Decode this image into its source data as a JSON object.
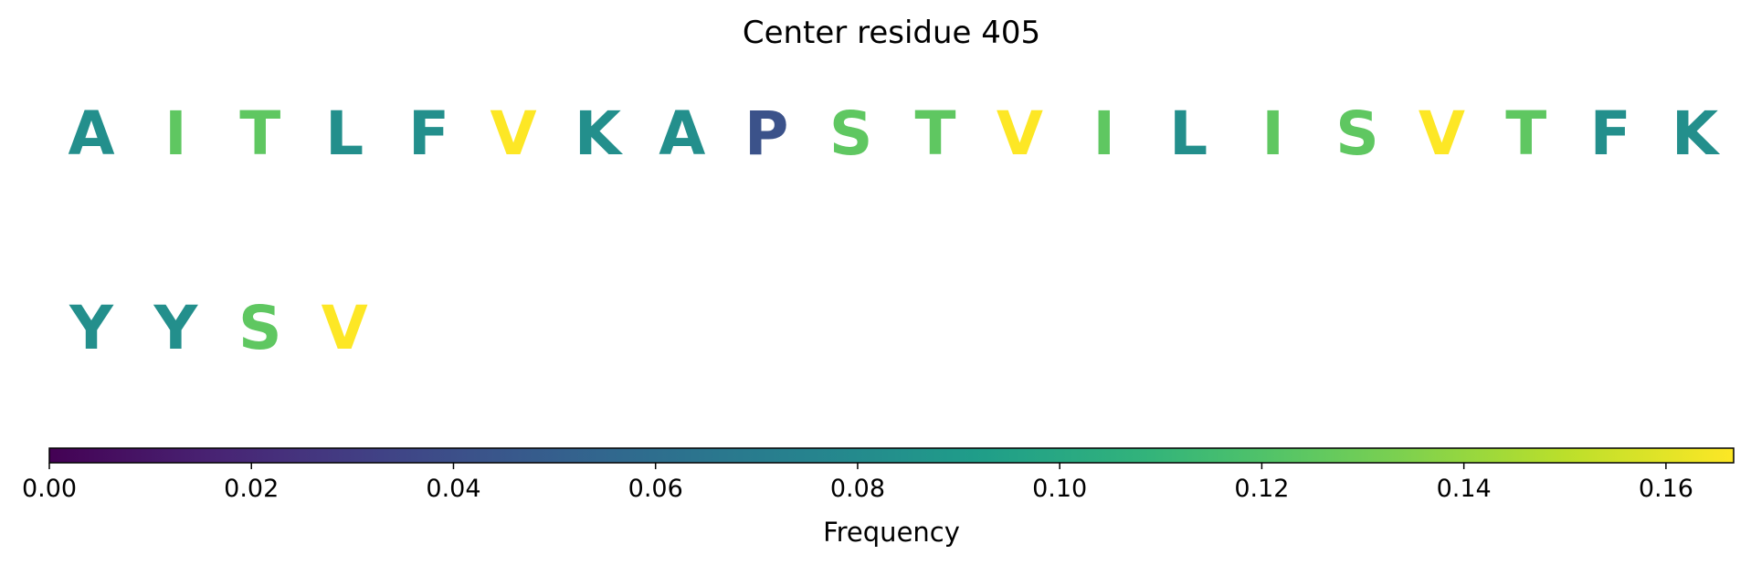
{
  "chart_data": {
    "type": "heatmap",
    "title": "Center residue 405",
    "residues": [
      {
        "letter": "A",
        "frequency": 0.083
      },
      {
        "letter": "I",
        "frequency": 0.125
      },
      {
        "letter": "T",
        "frequency": 0.125
      },
      {
        "letter": "L",
        "frequency": 0.083
      },
      {
        "letter": "F",
        "frequency": 0.083
      },
      {
        "letter": "V",
        "frequency": 0.167
      },
      {
        "letter": "K",
        "frequency": 0.083
      },
      {
        "letter": "A",
        "frequency": 0.083
      },
      {
        "letter": "P",
        "frequency": 0.042
      },
      {
        "letter": "S",
        "frequency": 0.125
      },
      {
        "letter": "T",
        "frequency": 0.125
      },
      {
        "letter": "V",
        "frequency": 0.167
      },
      {
        "letter": "I",
        "frequency": 0.125
      },
      {
        "letter": "L",
        "frequency": 0.083
      },
      {
        "letter": "I",
        "frequency": 0.125
      },
      {
        "letter": "S",
        "frequency": 0.125
      },
      {
        "letter": "V",
        "frequency": 0.167
      },
      {
        "letter": "T",
        "frequency": 0.125
      },
      {
        "letter": "F",
        "frequency": 0.083
      },
      {
        "letter": "K",
        "frequency": 0.083
      },
      {
        "letter": "Y",
        "frequency": 0.083
      },
      {
        "letter": "Y",
        "frequency": 0.083
      },
      {
        "letter": "S",
        "frequency": 0.125
      },
      {
        "letter": "V",
        "frequency": 0.167
      }
    ],
    "colorbar": {
      "label": "Frequency",
      "colormap": "viridis",
      "range": [
        0.0,
        0.1667
      ],
      "tick_labels": [
        "0.00",
        "0.02",
        "0.04",
        "0.06",
        "0.08",
        "0.10",
        "0.12",
        "0.14",
        "0.16"
      ],
      "tick_values": [
        0.0,
        0.02,
        0.04,
        0.06,
        0.08,
        0.1,
        0.12,
        0.14,
        0.16
      ],
      "orientation": "horizontal"
    }
  }
}
